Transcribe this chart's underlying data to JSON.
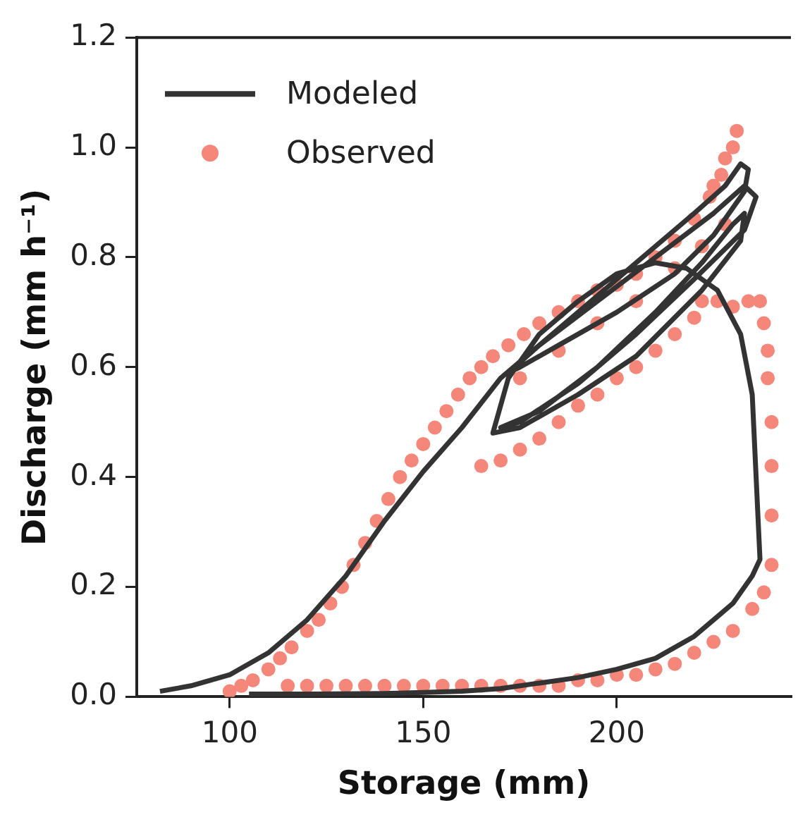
{
  "chart_data": {
    "type": "line",
    "xlabel": "Storage (mm)",
    "ylabel": "Discharge (mm h⁻¹)",
    "xlim": [
      76,
      245
    ],
    "xticks": [
      100,
      150,
      200
    ],
    "ylim": [
      0,
      1.2
    ],
    "yticks": [
      {
        "value": 0,
        "label": "0.0"
      },
      {
        "value": 0.2,
        "label": "0.2"
      },
      {
        "value": 0.4,
        "label": "0.4"
      },
      {
        "value": 0.6,
        "label": "0.6"
      },
      {
        "value": 0.8,
        "label": "0.8"
      },
      {
        "value": 1.0,
        "label": "1.0"
      },
      {
        "value": 1.2,
        "label": "1.2"
      }
    ],
    "grid": false,
    "legend": "top left",
    "line_style": "solid",
    "series": [
      {
        "name": "Observed",
        "type": "scatter",
        "marker": "circle",
        "color": "#f4877a",
        "x": [
          100,
          103,
          106,
          110,
          113,
          116,
          120,
          123,
          126,
          129,
          132,
          135,
          138,
          141,
          144,
          147,
          150,
          153,
          156,
          159,
          162,
          165,
          168,
          172,
          176,
          180,
          185,
          190,
          195,
          200,
          205,
          210,
          215,
          220,
          224,
          227,
          230,
          231,
          228,
          225,
          165,
          170,
          175,
          180,
          185,
          190,
          195,
          200,
          205,
          210,
          215,
          220,
          175,
          185,
          195,
          205,
          215,
          222,
          228,
          222,
          226,
          230,
          234,
          237,
          238,
          239,
          239,
          240,
          240,
          240,
          240,
          238,
          235,
          230,
          225,
          220,
          215,
          210,
          205,
          200,
          195,
          190,
          185,
          180,
          175,
          170,
          165,
          160,
          155,
          150,
          145,
          140,
          135,
          130,
          125,
          120,
          115
        ],
        "values": [
          0.01,
          0.02,
          0.03,
          0.05,
          0.07,
          0.09,
          0.12,
          0.14,
          0.17,
          0.2,
          0.24,
          0.28,
          0.32,
          0.36,
          0.4,
          0.43,
          0.46,
          0.49,
          0.52,
          0.55,
          0.58,
          0.6,
          0.62,
          0.64,
          0.66,
          0.68,
          0.7,
          0.72,
          0.74,
          0.75,
          0.77,
          0.8,
          0.83,
          0.87,
          0.91,
          0.95,
          1.0,
          1.03,
          0.98,
          0.93,
          0.42,
          0.43,
          0.45,
          0.47,
          0.5,
          0.53,
          0.55,
          0.58,
          0.6,
          0.63,
          0.66,
          0.69,
          0.58,
          0.63,
          0.68,
          0.72,
          0.78,
          0.82,
          0.86,
          0.72,
          0.72,
          0.71,
          0.72,
          0.72,
          0.68,
          0.63,
          0.58,
          0.5,
          0.42,
          0.33,
          0.24,
          0.19,
          0.16,
          0.12,
          0.1,
          0.08,
          0.06,
          0.05,
          0.04,
          0.04,
          0.03,
          0.03,
          0.02,
          0.02,
          0.02,
          0.02,
          0.02,
          0.02,
          0.02,
          0.02,
          0.02,
          0.02,
          0.02,
          0.02,
          0.02,
          0.02,
          0.02
        ]
      },
      {
        "name": "Modeled",
        "marker": "none",
        "color": "#333333",
        "x": [
          82,
          90,
          100,
          110,
          120,
          130,
          140,
          150,
          160,
          170,
          180,
          190,
          200,
          210,
          220,
          228,
          232,
          234,
          233,
          225,
          215,
          200,
          185,
          175,
          172,
          180,
          195,
          210,
          225,
          233,
          236,
          233,
          220,
          205,
          190,
          175,
          170,
          180,
          195,
          210,
          222,
          230,
          233,
          232,
          222,
          205,
          190,
          175,
          168,
          172,
          180,
          190,
          200,
          210,
          218,
          226,
          232,
          235,
          236,
          237,
          235,
          230,
          220,
          210,
          200,
          190,
          180,
          170,
          160,
          150,
          140,
          120,
          105
        ],
        "values": [
          0.01,
          0.02,
          0.04,
          0.08,
          0.14,
          0.22,
          0.32,
          0.41,
          0.49,
          0.58,
          0.64,
          0.7,
          0.76,
          0.82,
          0.88,
          0.93,
          0.97,
          0.96,
          0.92,
          0.84,
          0.77,
          0.7,
          0.64,
          0.6,
          0.59,
          0.64,
          0.72,
          0.8,
          0.88,
          0.93,
          0.91,
          0.85,
          0.76,
          0.66,
          0.57,
          0.5,
          0.49,
          0.52,
          0.6,
          0.7,
          0.79,
          0.86,
          0.88,
          0.83,
          0.74,
          0.62,
          0.55,
          0.49,
          0.48,
          0.58,
          0.66,
          0.72,
          0.77,
          0.79,
          0.78,
          0.74,
          0.66,
          0.55,
          0.4,
          0.25,
          0.22,
          0.17,
          0.11,
          0.07,
          0.05,
          0.035,
          0.025,
          0.015,
          0.01,
          0.008,
          0.006,
          0.005,
          0.005
        ]
      }
    ]
  }
}
